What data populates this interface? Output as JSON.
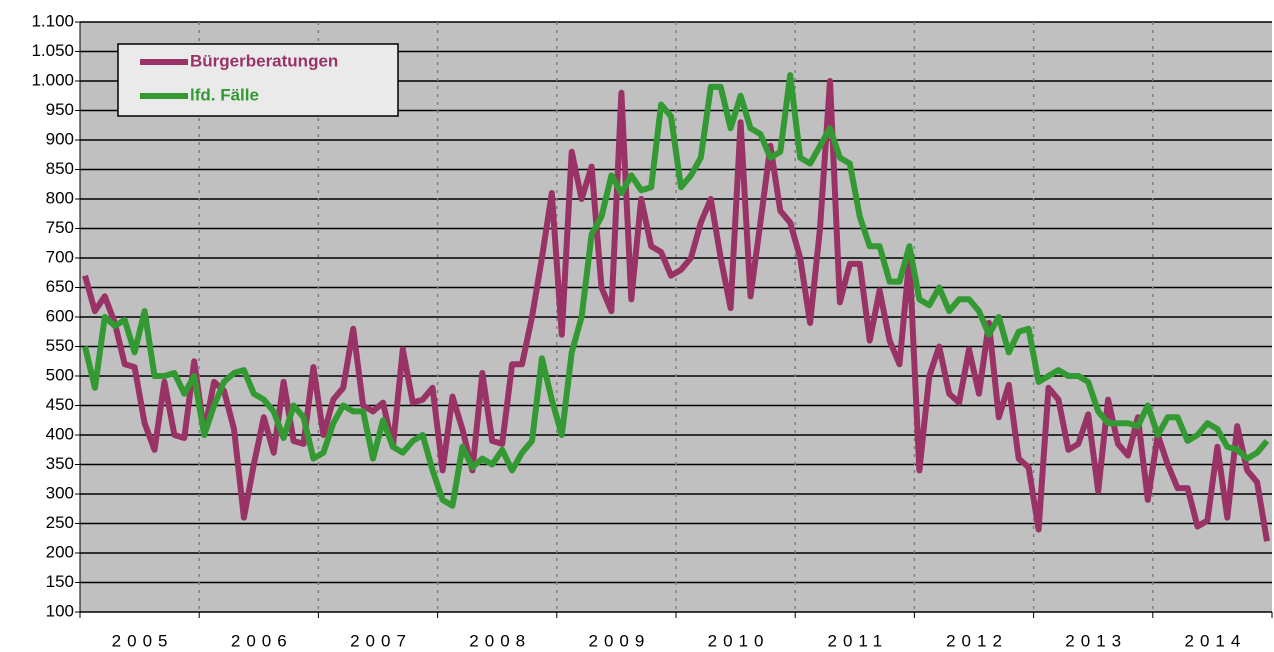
{
  "chart_data": {
    "type": "line",
    "categories": [
      null,
      null,
      null,
      null,
      null,
      null,
      "2005",
      null,
      null,
      null,
      null,
      null,
      null,
      null,
      null,
      null,
      null,
      null,
      "2006",
      null,
      null,
      null,
      null,
      null,
      null,
      null,
      null,
      null,
      null,
      null,
      "2007",
      null,
      null,
      null,
      null,
      null,
      null,
      null,
      null,
      null,
      null,
      null,
      "2008",
      null,
      null,
      null,
      null,
      null,
      null,
      null,
      null,
      null,
      null,
      null,
      "2009",
      null,
      null,
      null,
      null,
      null,
      null,
      null,
      null,
      null,
      null,
      null,
      "2010",
      null,
      null,
      null,
      null,
      null,
      null,
      null,
      null,
      null,
      null,
      null,
      "2011",
      null,
      null,
      null,
      null,
      null,
      null,
      null,
      null,
      null,
      null,
      null,
      "2012",
      null,
      null,
      null,
      null,
      null,
      null,
      null,
      null,
      null,
      null,
      null,
      "2013",
      null,
      null,
      null,
      null,
      null,
      null,
      null,
      null,
      null,
      null,
      null,
      "2014",
      null,
      null,
      null,
      null,
      null
    ],
    "series": [
      {
        "name": "Bürgerberatungen",
        "color": "#993366",
        "values": [
          670,
          610,
          635,
          590,
          520,
          515,
          420,
          375,
          490,
          400,
          395,
          525,
          405,
          490,
          475,
          410,
          260,
          350,
          430,
          370,
          490,
          390,
          385,
          515,
          400,
          460,
          480,
          580,
          450,
          440,
          455,
          380,
          545,
          455,
          460,
          480,
          340,
          465,
          410,
          340,
          505,
          390,
          385,
          520,
          520,
          600,
          700,
          810,
          570,
          880,
          800,
          855,
          650,
          610,
          980,
          630,
          800,
          720,
          710,
          670,
          680,
          700,
          760,
          800,
          700,
          615,
          930,
          635,
          760,
          890,
          780,
          760,
          700,
          590,
          750,
          1000,
          625,
          690,
          690,
          560,
          645,
          560,
          520,
          700,
          340,
          500,
          550,
          470,
          455,
          545,
          470,
          590,
          430,
          485,
          360,
          345,
          240,
          480,
          460,
          375,
          385,
          435,
          305,
          460,
          385,
          365,
          430,
          290,
          400,
          350,
          310,
          310,
          245,
          255,
          380,
          260,
          415,
          340,
          320,
          220
        ]
      },
      {
        "name": "lfd. Fälle",
        "color": "#339933",
        "values": [
          550,
          480,
          600,
          585,
          595,
          540,
          610,
          500,
          500,
          505,
          470,
          500,
          400,
          450,
          490,
          505,
          510,
          470,
          460,
          440,
          395,
          450,
          430,
          360,
          370,
          420,
          450,
          440,
          440,
          360,
          425,
          380,
          370,
          390,
          400,
          340,
          290,
          280,
          380,
          345,
          360,
          350,
          375,
          340,
          370,
          390,
          530,
          460,
          400,
          540,
          600,
          740,
          770,
          840,
          810,
          840,
          815,
          820,
          960,
          940,
          820,
          840,
          870,
          990,
          990,
          920,
          975,
          920,
          910,
          870,
          880,
          1010,
          870,
          860,
          890,
          920,
          870,
          860,
          770,
          720,
          720,
          660,
          660,
          720,
          630,
          620,
          650,
          610,
          630,
          630,
          610,
          570,
          600,
          540,
          575,
          580,
          490,
          500,
          510,
          500,
          500,
          490,
          440,
          420,
          420,
          420,
          415,
          450,
          400,
          430,
          430,
          390,
          400,
          420,
          410,
          380,
          375,
          360,
          370,
          390
        ]
      }
    ],
    "ylim": [
      100,
      1100
    ],
    "yticks": [
      100,
      150,
      200,
      250,
      300,
      350,
      400,
      450,
      500,
      550,
      600,
      650,
      700,
      750,
      800,
      850,
      900,
      950,
      {
        "value": 1000,
        "label": "1.000"
      },
      {
        "value": 1050,
        "label": "1.050"
      },
      {
        "value": 1100,
        "label": "1.100"
      }
    ],
    "grid": true,
    "legend": "upper left"
  }
}
